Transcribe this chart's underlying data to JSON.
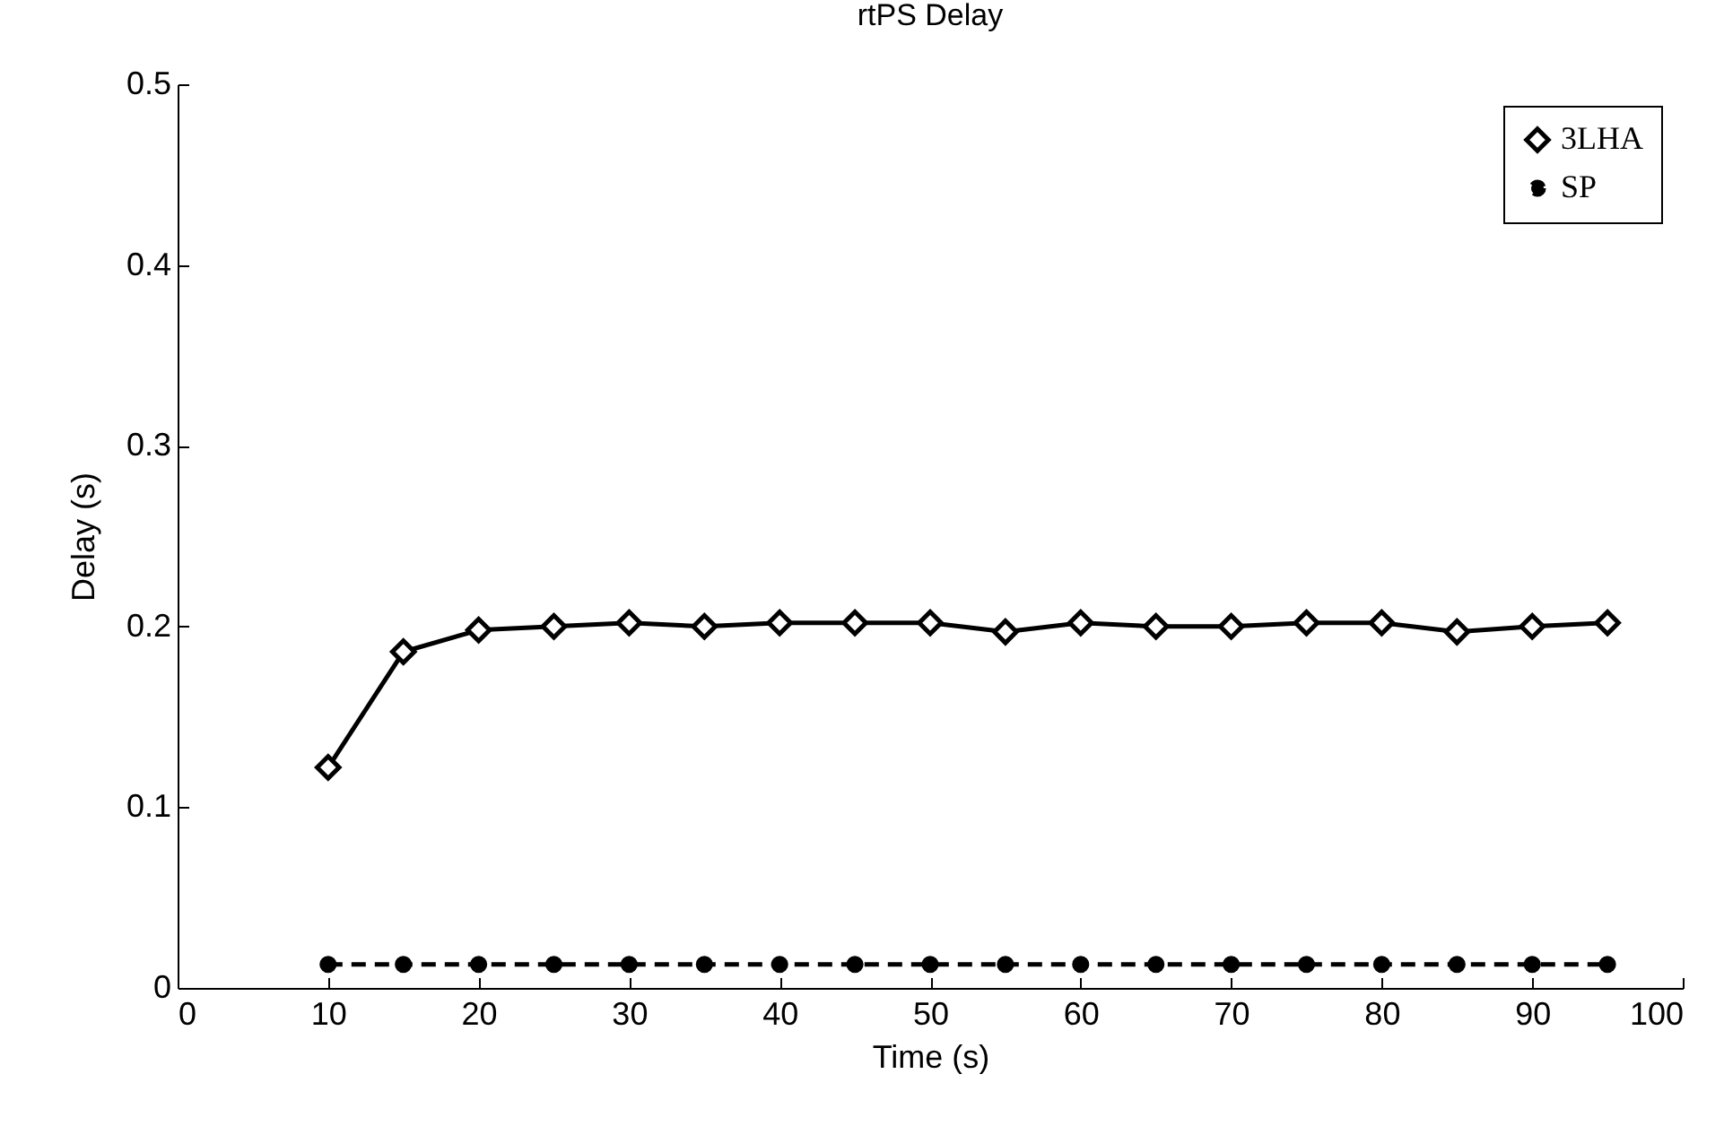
{
  "chart_data": {
    "type": "line",
    "title": "rtPS Delay",
    "xlabel": "Time (s)",
    "ylabel": "Delay (s)",
    "x": [
      10,
      15,
      20,
      25,
      30,
      35,
      40,
      45,
      50,
      55,
      60,
      65,
      70,
      75,
      80,
      85,
      90,
      95
    ],
    "series": [
      {
        "name": "3LHA",
        "color": "#000000",
        "marker": "diamond",
        "line_style": "solid",
        "values": [
          0.122,
          0.186,
          0.198,
          0.2,
          0.202,
          0.2,
          0.202,
          0.202,
          0.202,
          0.197,
          0.202,
          0.2,
          0.2,
          0.202,
          0.202,
          0.197,
          0.2,
          0.202
        ]
      },
      {
        "name": "SP",
        "color": "#000000",
        "marker": "circle",
        "line_style": "dashed",
        "values": [
          0.013,
          0.013,
          0.013,
          0.013,
          0.013,
          0.013,
          0.013,
          0.013,
          0.013,
          0.013,
          0.013,
          0.013,
          0.013,
          0.013,
          0.013,
          0.013,
          0.013,
          0.013
        ]
      }
    ],
    "xlim": [
      0,
      100
    ],
    "xticks": [
      0,
      10,
      20,
      30,
      40,
      50,
      60,
      70,
      80,
      90,
      100
    ],
    "ylim": [
      0,
      0.5
    ],
    "yticks": [
      0,
      0.1,
      0.2,
      0.3,
      0.4,
      0.5
    ],
    "grid": false,
    "legend": "top right"
  }
}
